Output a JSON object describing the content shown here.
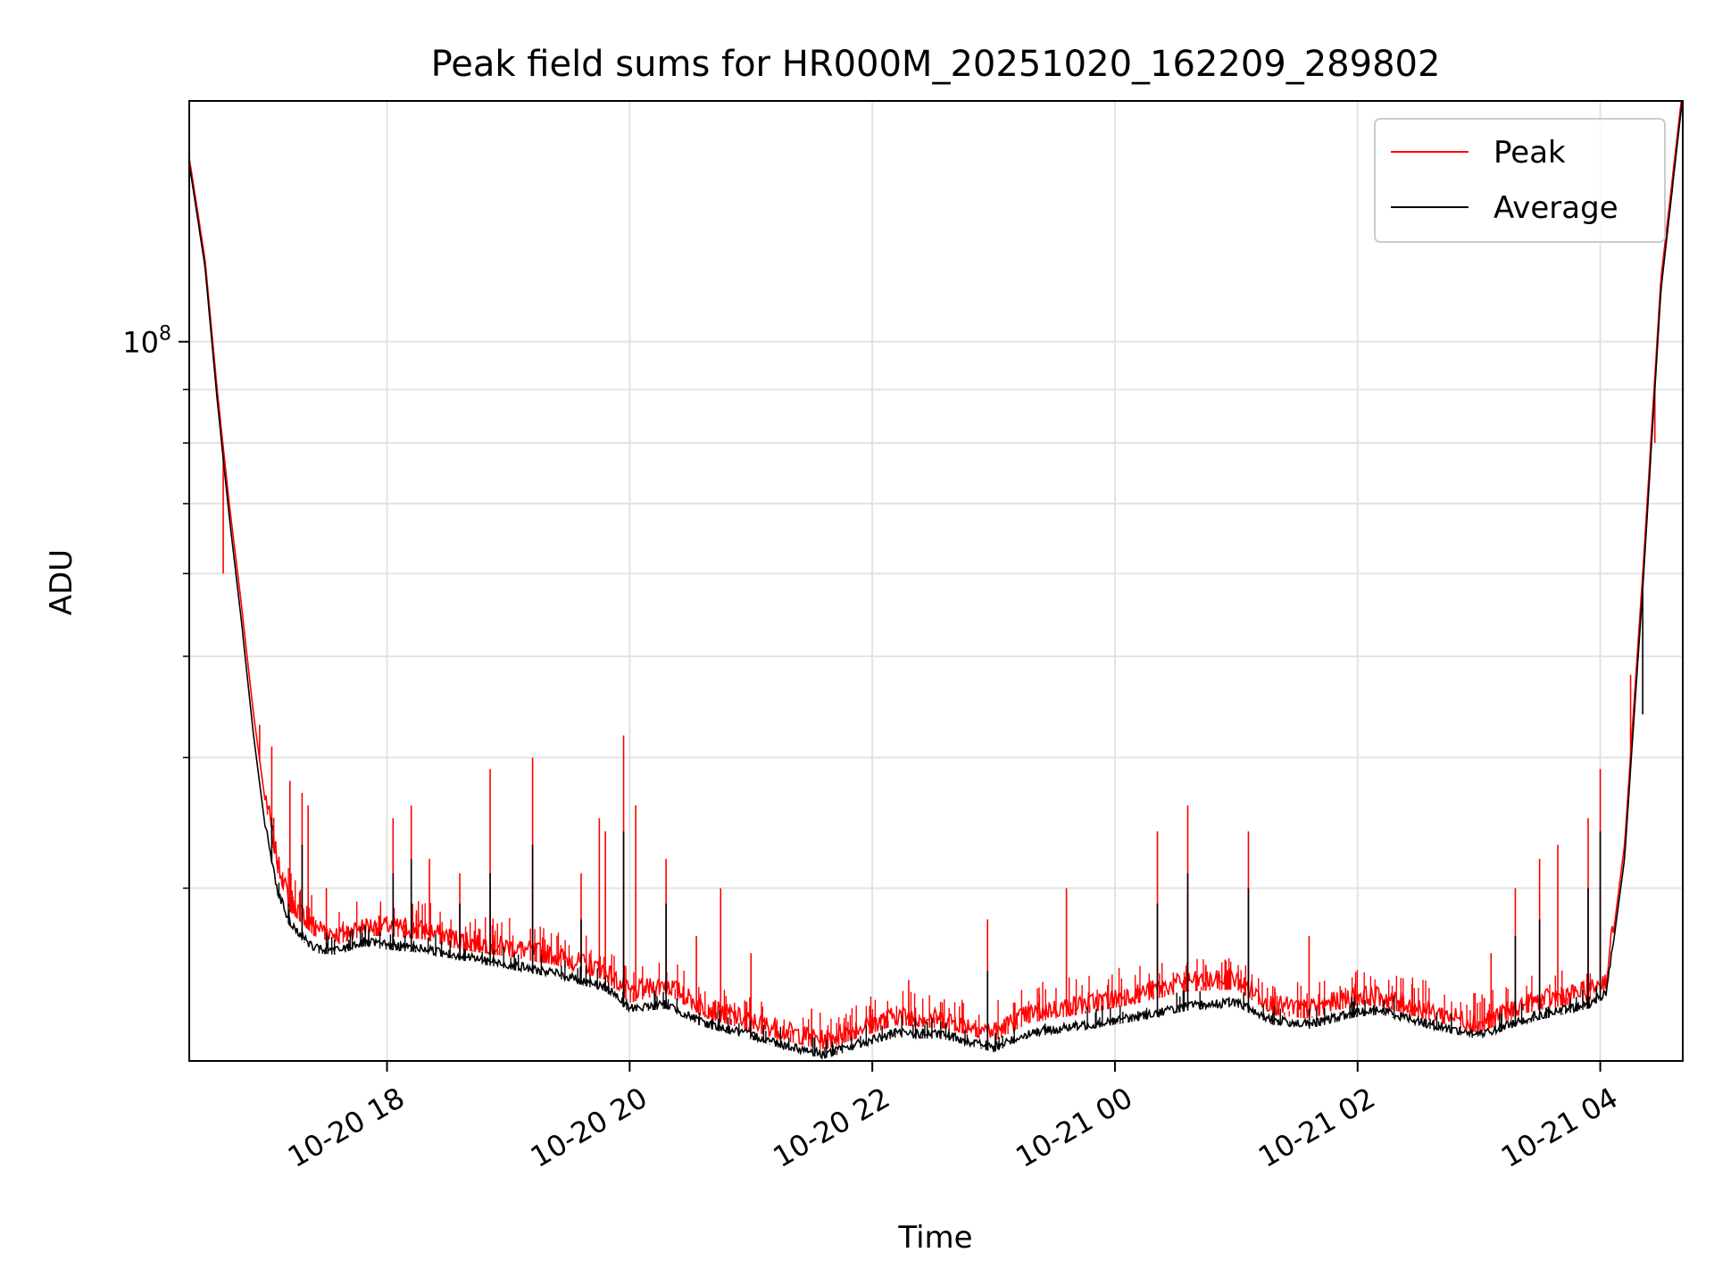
{
  "chart_data": {
    "type": "line",
    "title": "Peak field sums for HR000M_20251020_162209_289802",
    "xlabel": "Time",
    "ylabel": "ADU",
    "yscale": "log",
    "grid": true,
    "legend_position": "upper right",
    "x_unit": "hours since 2025-10-20 00:00",
    "xlim": [
      16.37,
      28.68
    ],
    "ylim": [
      20500000,
      170000000
    ],
    "x_ticks": [
      {
        "value": 18,
        "label": "10-20 18"
      },
      {
        "value": 20,
        "label": "10-20 20"
      },
      {
        "value": 22,
        "label": "10-20 22"
      },
      {
        "value": 24,
        "label": "10-21 00"
      },
      {
        "value": 26,
        "label": "10-21 02"
      },
      {
        "value": 28,
        "label": "10-21 04"
      }
    ],
    "y_major_tick": {
      "value": 100000000,
      "label_base": "10",
      "label_exp": "8"
    },
    "y_minor_ticks": [
      30000000,
      40000000,
      50000000,
      60000000,
      70000000,
      80000000,
      90000000,
      200000000
    ],
    "series": [
      {
        "name": "Peak",
        "color": "#ff0000",
        "baseline": [
          [
            16.37,
            150000000
          ],
          [
            16.5,
            120000000
          ],
          [
            16.6,
            90000000
          ],
          [
            16.7,
            70000000
          ],
          [
            16.8,
            56000000
          ],
          [
            16.9,
            44000000
          ],
          [
            17.0,
            36000000
          ],
          [
            17.1,
            31000000
          ],
          [
            17.2,
            28500000
          ],
          [
            17.4,
            27000000
          ],
          [
            17.6,
            26500000
          ],
          [
            17.8,
            27000000
          ],
          [
            18.0,
            27000000
          ],
          [
            18.3,
            26800000
          ],
          [
            18.6,
            26200000
          ],
          [
            19.0,
            25800000
          ],
          [
            19.4,
            25300000
          ],
          [
            19.8,
            24500000
          ],
          [
            20.0,
            23300000
          ],
          [
            20.3,
            23800000
          ],
          [
            20.6,
            22600000
          ],
          [
            21.0,
            21900000
          ],
          [
            21.3,
            21400000
          ],
          [
            21.6,
            21000000
          ],
          [
            21.9,
            21600000
          ],
          [
            22.2,
            22200000
          ],
          [
            22.6,
            22000000
          ],
          [
            23.0,
            21400000
          ],
          [
            23.3,
            22300000
          ],
          [
            23.8,
            22800000
          ],
          [
            24.2,
            23300000
          ],
          [
            24.6,
            23900000
          ],
          [
            25.0,
            24000000
          ],
          [
            25.3,
            22700000
          ],
          [
            25.6,
            22500000
          ],
          [
            26.0,
            23200000
          ],
          [
            26.2,
            23100000
          ],
          [
            26.6,
            22400000
          ],
          [
            27.0,
            21800000
          ],
          [
            27.4,
            22800000
          ],
          [
            27.9,
            23400000
          ],
          [
            28.05,
            24000000
          ],
          [
            28.2,
            33000000
          ],
          [
            28.35,
            60000000
          ],
          [
            28.5,
            115000000
          ],
          [
            28.68,
            175000000
          ]
        ],
        "spikes": [
          [
            16.65,
            60000000
          ],
          [
            16.9,
            44000000
          ],
          [
            16.95,
            43000000
          ],
          [
            17.05,
            41000000
          ],
          [
            17.2,
            38000000
          ],
          [
            17.3,
            37000000
          ],
          [
            17.35,
            36000000
          ],
          [
            17.5,
            30000000
          ],
          [
            18.05,
            35000000
          ],
          [
            18.2,
            36000000
          ],
          [
            18.35,
            32000000
          ],
          [
            18.6,
            31000000
          ],
          [
            18.85,
            39000000
          ],
          [
            19.2,
            40000000
          ],
          [
            19.6,
            31000000
          ],
          [
            19.75,
            35000000
          ],
          [
            19.8,
            34000000
          ],
          [
            19.95,
            42000000
          ],
          [
            20.05,
            36000000
          ],
          [
            20.3,
            32000000
          ],
          [
            20.55,
            27000000
          ],
          [
            20.75,
            30000000
          ],
          [
            21.0,
            26000000
          ],
          [
            21.5,
            23000000
          ],
          [
            22.3,
            24500000
          ],
          [
            22.95,
            28000000
          ],
          [
            23.6,
            30000000
          ],
          [
            24.35,
            34000000
          ],
          [
            24.6,
            36000000
          ],
          [
            25.1,
            34000000
          ],
          [
            25.6,
            27000000
          ],
          [
            26.3,
            23500000
          ],
          [
            26.7,
            23000000
          ],
          [
            27.1,
            26000000
          ],
          [
            27.3,
            30000000
          ],
          [
            27.5,
            32000000
          ],
          [
            27.65,
            33000000
          ],
          [
            27.9,
            35000000
          ],
          [
            28.0,
            39000000
          ],
          [
            28.25,
            48000000
          ],
          [
            28.35,
            56000000
          ],
          [
            28.45,
            80000000
          ]
        ]
      },
      {
        "name": "Average",
        "color": "#000000",
        "baseline": [
          [
            16.37,
            148000000
          ],
          [
            16.5,
            118000000
          ],
          [
            16.6,
            88000000
          ],
          [
            16.7,
            68000000
          ],
          [
            16.8,
            54000000
          ],
          [
            16.9,
            42000000
          ],
          [
            17.0,
            34000000
          ],
          [
            17.1,
            29500000
          ],
          [
            17.2,
            27500000
          ],
          [
            17.4,
            26000000
          ],
          [
            17.6,
            25900000
          ],
          [
            17.8,
            26400000
          ],
          [
            18.0,
            26200000
          ],
          [
            18.3,
            26000000
          ],
          [
            18.6,
            25600000
          ],
          [
            19.0,
            25100000
          ],
          [
            19.4,
            24600000
          ],
          [
            19.8,
            23900000
          ],
          [
            20.0,
            22800000
          ],
          [
            20.3,
            23000000
          ],
          [
            20.6,
            22100000
          ],
          [
            21.0,
            21500000
          ],
          [
            21.3,
            21000000
          ],
          [
            21.6,
            20600000
          ],
          [
            21.9,
            21100000
          ],
          [
            22.2,
            21600000
          ],
          [
            22.6,
            21500000
          ],
          [
            23.0,
            20900000
          ],
          [
            23.3,
            21600000
          ],
          [
            23.8,
            22000000
          ],
          [
            24.2,
            22400000
          ],
          [
            24.6,
            22900000
          ],
          [
            25.0,
            23100000
          ],
          [
            25.3,
            22200000
          ],
          [
            25.6,
            22000000
          ],
          [
            26.0,
            22600000
          ],
          [
            26.2,
            22700000
          ],
          [
            26.6,
            22000000
          ],
          [
            27.0,
            21500000
          ],
          [
            27.4,
            22300000
          ],
          [
            27.9,
            23000000
          ],
          [
            28.05,
            23600000
          ],
          [
            28.2,
            32000000
          ],
          [
            28.35,
            58000000
          ],
          [
            28.5,
            112000000
          ],
          [
            28.68,
            172000000
          ]
        ],
        "spikes": [
          [
            17.05,
            35000000
          ],
          [
            17.3,
            33000000
          ],
          [
            18.05,
            31000000
          ],
          [
            18.2,
            32000000
          ],
          [
            18.6,
            29000000
          ],
          [
            18.85,
            31000000
          ],
          [
            19.2,
            33000000
          ],
          [
            19.6,
            28000000
          ],
          [
            19.95,
            34000000
          ],
          [
            20.3,
            29000000
          ],
          [
            22.95,
            25000000
          ],
          [
            24.35,
            29000000
          ],
          [
            24.6,
            31000000
          ],
          [
            25.1,
            30000000
          ],
          [
            27.3,
            27000000
          ],
          [
            27.5,
            28000000
          ],
          [
            27.9,
            30000000
          ],
          [
            28.0,
            34000000
          ],
          [
            28.35,
            44000000
          ]
        ]
      }
    ]
  }
}
